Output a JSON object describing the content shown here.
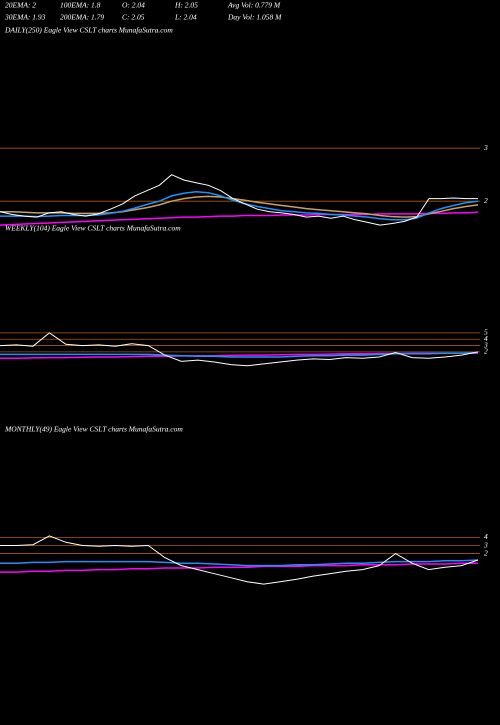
{
  "header": {
    "rows": [
      [
        "20EMA: 2",
        "100EMA: 1.8",
        "O: 2.04",
        "H: 2.05",
        "Avg Vol: 0.779 M"
      ],
      [
        "30EMA: 1.93",
        "200EMA: 1.79",
        "C: 2.05",
        "L: 2.04",
        "Day Vol: 1.058 M"
      ]
    ]
  },
  "chart_data": [
    {
      "type": "line",
      "title": "DAILY(250) Eagle View CSLT charts MunafaSutra.com",
      "ylim": [
        1.08,
        5.04
      ],
      "yticks": [
        2,
        3
      ],
      "grid": true,
      "grid_color": "#b05a00",
      "series": [
        {
          "name": "200EMA",
          "color": "#ff00ff",
          "values": [
            1.55,
            1.56,
            1.57,
            1.58,
            1.59,
            1.6,
            1.61,
            1.62,
            1.63,
            1.64,
            1.65,
            1.66,
            1.67,
            1.68,
            1.69,
            1.7,
            1.7,
            1.71,
            1.72,
            1.72,
            1.73,
            1.73,
            1.73,
            1.74,
            1.74,
            1.74,
            1.75,
            1.75,
            1.75,
            1.75,
            1.75,
            1.76,
            1.76,
            1.76,
            1.76,
            1.77,
            1.77,
            1.78,
            1.78,
            1.79
          ]
        },
        {
          "name": "30EMA",
          "color": "#c8a060",
          "values": [
            1.8,
            1.8,
            1.79,
            1.78,
            1.78,
            1.78,
            1.77,
            1.77,
            1.77,
            1.78,
            1.8,
            1.84,
            1.88,
            1.93,
            2.0,
            2.05,
            2.08,
            2.09,
            2.08,
            2.05,
            2.02,
            1.98,
            1.95,
            1.92,
            1.89,
            1.86,
            1.84,
            1.82,
            1.8,
            1.78,
            1.76,
            1.73,
            1.71,
            1.7,
            1.71,
            1.76,
            1.81,
            1.86,
            1.9,
            1.93
          ]
        },
        {
          "name": "20EMA",
          "color": "#1e90ff",
          "values": [
            1.72,
            1.72,
            1.72,
            1.71,
            1.72,
            1.73,
            1.73,
            1.73,
            1.74,
            1.77,
            1.81,
            1.87,
            1.94,
            2.0,
            2.1,
            2.15,
            2.18,
            2.16,
            2.1,
            2.02,
            1.95,
            1.9,
            1.86,
            1.82,
            1.8,
            1.78,
            1.77,
            1.75,
            1.74,
            1.72,
            1.7,
            1.67,
            1.65,
            1.65,
            1.68,
            1.78,
            1.86,
            1.92,
            1.97,
            2.0
          ]
        },
        {
          "name": "Price",
          "color": "#ffffff",
          "values": [
            1.8,
            1.75,
            1.72,
            1.7,
            1.78,
            1.8,
            1.75,
            1.72,
            1.76,
            1.85,
            1.95,
            2.1,
            2.2,
            2.3,
            2.5,
            2.4,
            2.35,
            2.3,
            2.2,
            2.05,
            1.95,
            1.85,
            1.8,
            1.78,
            1.75,
            1.7,
            1.72,
            1.68,
            1.72,
            1.65,
            1.6,
            1.55,
            1.58,
            1.62,
            1.7,
            2.05,
            2.05,
            2.06,
            2.05,
            2.05
          ]
        }
      ]
    },
    {
      "type": "line",
      "title": "WEEKLY(104) Eagle View CSLT charts MunafaSutra.com",
      "ylim": [
        -5.6,
        10.2
      ],
      "yticks": [
        2,
        3,
        4,
        5
      ],
      "grid": true,
      "grid_color": "#b05a00",
      "series": [
        {
          "name": "200EMA",
          "color": "#ff00ff",
          "values": [
            1.0,
            1.0,
            1.05,
            1.1,
            1.1,
            1.15,
            1.2,
            1.2,
            1.25,
            1.3,
            1.3,
            1.35,
            1.4,
            1.4,
            1.45,
            1.5,
            1.5,
            1.55,
            1.6,
            1.6,
            1.65,
            1.7,
            1.7,
            1.75,
            1.75,
            1.8,
            1.8,
            1.8,
            1.8,
            1.8
          ]
        },
        {
          "name": "20EMA",
          "color": "#1e90ff",
          "values": [
            1.6,
            1.6,
            1.6,
            1.6,
            1.6,
            1.6,
            1.6,
            1.6,
            1.6,
            1.6,
            1.5,
            1.4,
            1.3,
            1.3,
            1.2,
            1.2,
            1.2,
            1.2,
            1.3,
            1.4,
            1.4,
            1.5,
            1.5,
            1.6,
            1.7,
            1.7,
            1.7,
            1.8,
            1.8,
            1.9
          ]
        },
        {
          "name": "Price",
          "color": "#ffffff",
          "values": [
            3.0,
            3.1,
            2.9,
            5.0,
            3.2,
            3.0,
            3.1,
            2.9,
            3.3,
            3.0,
            1.5,
            0.5,
            0.7,
            0.4,
            0.0,
            -0.2,
            0.1,
            0.4,
            0.7,
            0.9,
            0.8,
            1.1,
            1.0,
            1.2,
            1.9,
            1.1,
            1.0,
            1.2,
            1.5,
            2.0
          ]
        }
      ]
    },
    {
      "type": "line",
      "title": "MONTHLY(49) Eagle View CSLT charts MunafaSutra.com",
      "ylim": [
        -10,
        12.4
      ],
      "yticks": [
        2,
        3,
        4
      ],
      "grid": true,
      "grid_color": "#b05a00",
      "series": [
        {
          "name": "200EMA",
          "color": "#ff00ff",
          "values": [
            -0.3,
            -0.3,
            -0.2,
            -0.2,
            -0.1,
            -0.1,
            0.0,
            0.0,
            0.1,
            0.1,
            0.2,
            0.2,
            0.2,
            0.3,
            0.3,
            0.3,
            0.4,
            0.4,
            0.4,
            0.5,
            0.5,
            0.5,
            0.6,
            0.6,
            0.6,
            0.7,
            0.7,
            0.7,
            0.8,
            0.8
          ]
        },
        {
          "name": "20EMA",
          "color": "#1e90ff",
          "values": [
            0.8,
            0.8,
            0.9,
            0.9,
            1.0,
            1.0,
            1.0,
            1.0,
            1.0,
            1.0,
            0.9,
            0.8,
            0.8,
            0.7,
            0.6,
            0.5,
            0.5,
            0.5,
            0.6,
            0.6,
            0.7,
            0.8,
            0.8,
            0.9,
            1.0,
            1.0,
            1.0,
            1.1,
            1.1,
            1.2
          ]
        },
        {
          "name": "Price",
          "color": "#ffffff",
          "values": [
            3.0,
            3.0,
            3.1,
            4.2,
            3.4,
            3.0,
            2.9,
            3.0,
            2.9,
            3.0,
            1.5,
            0.5,
            0.0,
            -0.5,
            -1.0,
            -1.5,
            -1.8,
            -1.5,
            -1.2,
            -0.8,
            -0.5,
            -0.2,
            0.0,
            0.5,
            2.0,
            0.8,
            0.0,
            0.3,
            0.5,
            1.2
          ]
        }
      ]
    }
  ]
}
